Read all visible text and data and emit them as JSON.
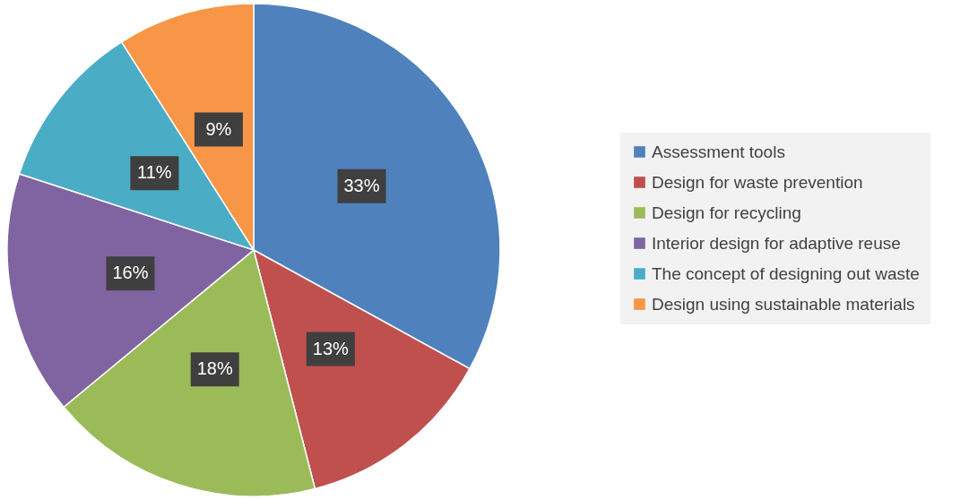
{
  "chart_data": {
    "type": "pie",
    "categories": [
      "Assessment tools",
      "Design for waste prevention",
      "Design for recycling",
      "Interior design for adaptive reuse",
      "The concept of designing out waste",
      "Design using sustainable materials"
    ],
    "values": [
      33,
      13,
      18,
      16,
      11,
      9
    ],
    "colors": [
      "#4f81bd",
      "#c0504d",
      "#9bbb59",
      "#8064a2",
      "#4bacc6",
      "#f79646"
    ],
    "value_labels": [
      "33%",
      "13%",
      "18%",
      "16%",
      "11%",
      "9%"
    ],
    "legend": "right"
  }
}
